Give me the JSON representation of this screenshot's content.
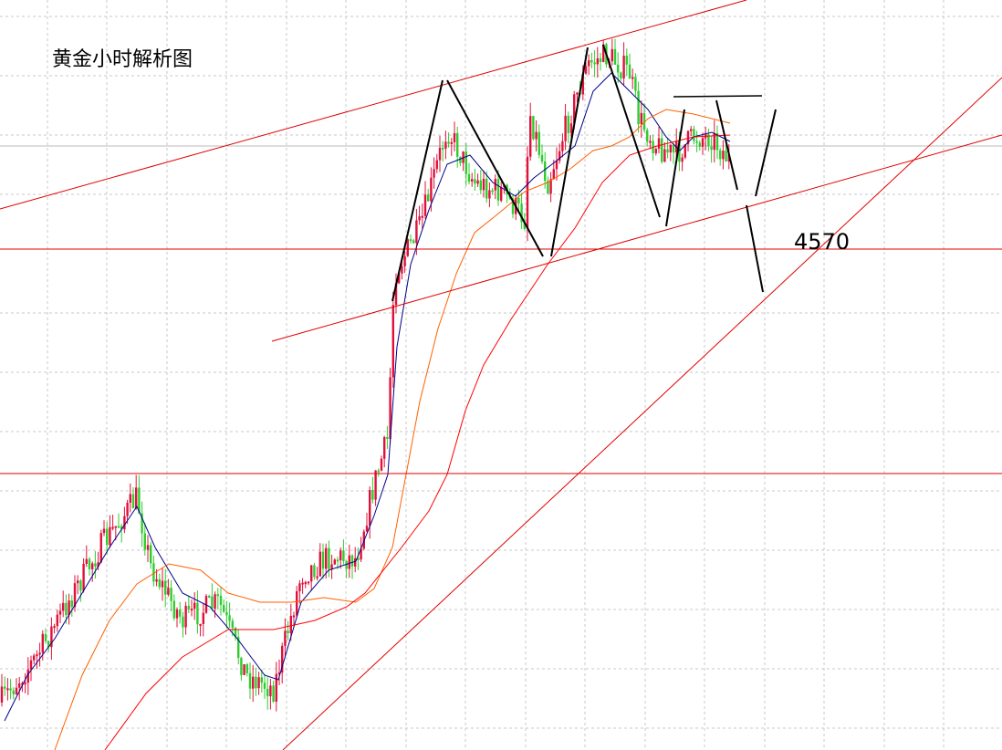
{
  "chart_data": {
    "type": "candlestick",
    "title": "黄金小时解析图",
    "annotations": [
      "4570"
    ]
  }
}
